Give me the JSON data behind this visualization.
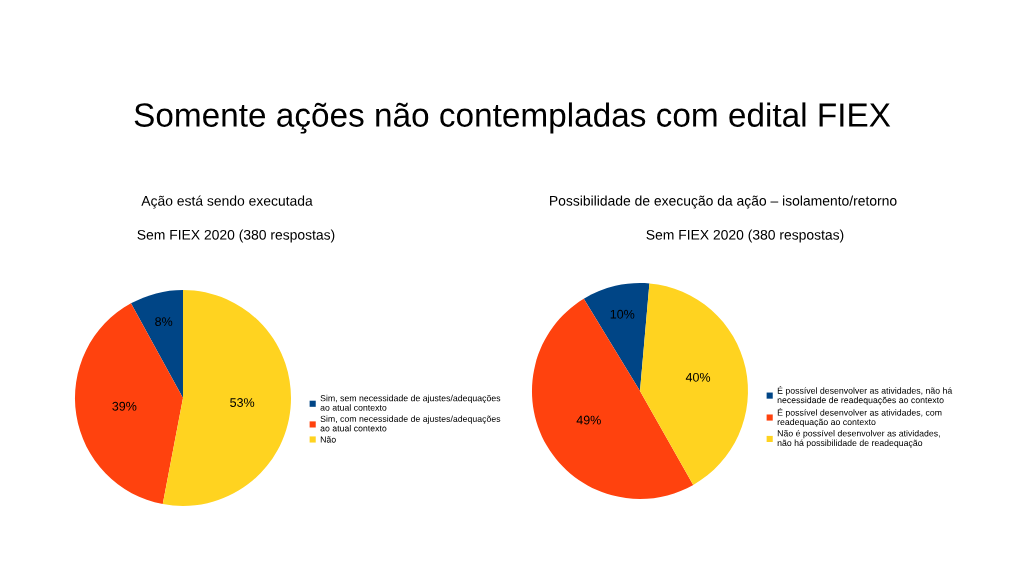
{
  "chart_data": [
    {
      "type": "other",
      "title": "Somente ações não contempladas com edital FIEX"
    },
    {
      "type": "pie",
      "title": "Ação está sendo executada",
      "subtitle": "Sem FIEX 2020 (380 respostas)",
      "categories": [
        "Sim, sem necessidade de ajustes/adequações ao atual contexto",
        "Sim, com necessidade de ajustes/adequações ao atual contexto",
        "Não"
      ],
      "values": [
        8,
        39,
        53
      ],
      "colors": [
        "#004586",
        "#ff420e",
        "#ffd320"
      ],
      "value_labels": [
        "8%",
        "39%",
        "53%"
      ],
      "legend": "right"
    },
    {
      "type": "pie",
      "title": "Possibilidade de execução da ação – isolamento/retorno",
      "subtitle": "Sem FIEX 2020 (380 respostas)",
      "categories": [
        "É possível desenvolver as atividades, não há necessidade de readequações ao contexto",
        "É possível desenvolver as atividades, com readequação ao contexto",
        "Não é possível desenvolver as atividades, não há possibilidade de readequação"
      ],
      "values": [
        10,
        49,
        40
      ],
      "colors": [
        "#004586",
        "#ff420e",
        "#ffd320"
      ],
      "value_labels": [
        "10%",
        "49%",
        "40%"
      ],
      "legend": "right"
    }
  ]
}
